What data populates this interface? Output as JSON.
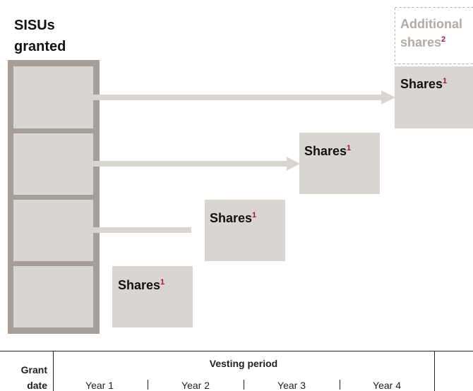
{
  "title": {
    "line1": "SISUs",
    "line2": "granted"
  },
  "additional": {
    "line1": "Additional",
    "line2": "shares",
    "note": "2"
  },
  "nodes": [
    {
      "label": "Shares",
      "note": "1"
    },
    {
      "label": "Shares",
      "note": "1"
    },
    {
      "label": "Shares",
      "note": "1"
    },
    {
      "label": "Shares",
      "note": "1"
    }
  ],
  "timeline": {
    "grant": {
      "line1": "Grant",
      "line2": "date"
    },
    "period": "Vesting period",
    "years": [
      "Year 1",
      "Year 2",
      "Year 3",
      "Year 4"
    ]
  }
}
